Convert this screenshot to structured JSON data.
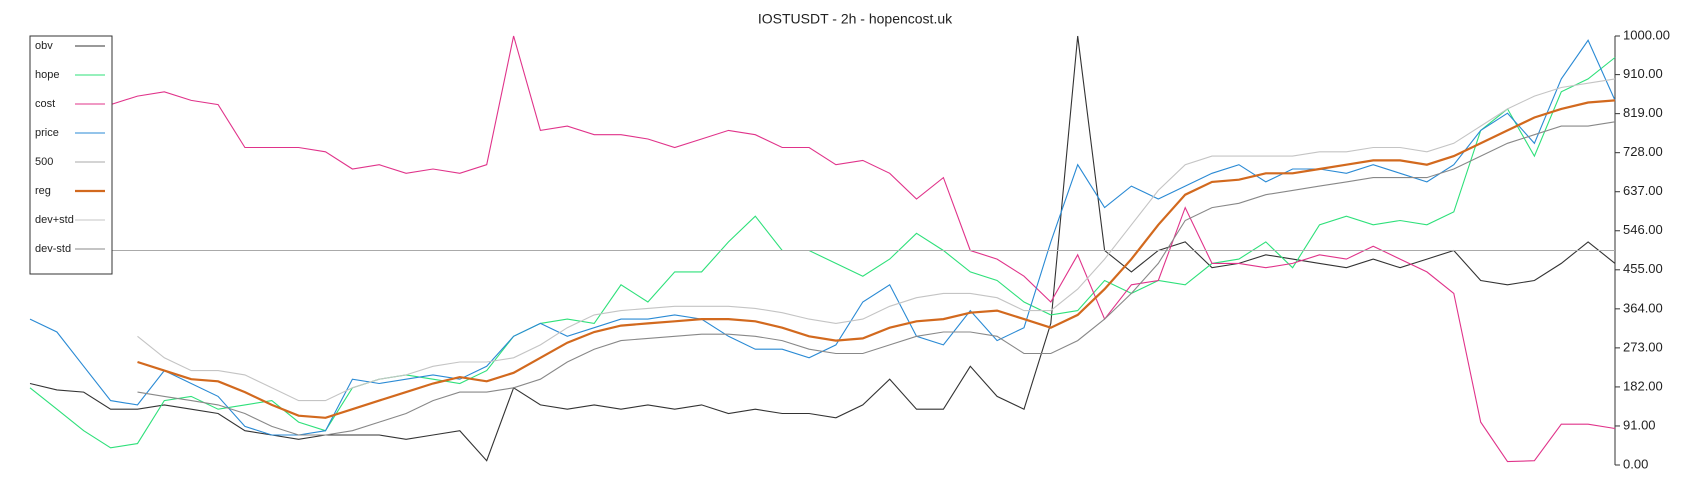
{
  "chart_data": {
    "type": "line",
    "title": "IOSTUSDT - 2h - hopencost.uk",
    "categories": [
      null,
      null,
      null,
      null,
      null,
      null,
      null,
      null,
      null,
      null,
      null,
      null,
      null,
      null,
      null,
      null,
      null,
      null,
      null,
      null,
      null,
      null,
      null,
      null,
      null,
      null,
      null,
      null,
      null,
      null,
      null,
      null,
      null,
      null,
      null,
      null,
      null,
      null,
      null,
      null,
      null,
      null,
      null,
      null,
      null,
      null,
      null,
      null,
      null,
      null,
      null,
      null,
      null,
      null,
      null,
      null,
      null,
      null,
      null,
      null
    ],
    "series": [
      {
        "name": "obv",
        "color": "#333333",
        "values": [
          190,
          175,
          170,
          130,
          130,
          140,
          130,
          120,
          80,
          70,
          60,
          70,
          70,
          70,
          60,
          70,
          80,
          10,
          180,
          140,
          130,
          140,
          130,
          140,
          130,
          140,
          120,
          130,
          120,
          120,
          110,
          140,
          200,
          130,
          130,
          230,
          160,
          130,
          330,
          1000,
          500,
          450,
          500,
          520,
          460,
          470,
          490,
          480,
          470,
          460,
          480,
          460,
          480,
          500,
          430,
          420,
          430,
          470,
          520,
          470
        ]
      },
      {
        "name": "hope",
        "color": "#2ee07a",
        "values": [
          180,
          130,
          80,
          40,
          50,
          150,
          160,
          130,
          140,
          150,
          100,
          80,
          180,
          200,
          210,
          200,
          190,
          220,
          300,
          330,
          340,
          330,
          420,
          380,
          450,
          450,
          520,
          580,
          500,
          500,
          470,
          440,
          480,
          540,
          500,
          450,
          430,
          380,
          350,
          360,
          430,
          400,
          430,
          420,
          470,
          480,
          520,
          460,
          560,
          580,
          560,
          570,
          560,
          590,
          780,
          830,
          720,
          870,
          900,
          950
        ]
      },
      {
        "name": "cost",
        "color": "#e0338a",
        "values": [
          null,
          null,
          null,
          840,
          860,
          870,
          850,
          840,
          740,
          740,
          740,
          730,
          690,
          700,
          680,
          690,
          680,
          700,
          1000,
          780,
          790,
          770,
          770,
          760,
          740,
          760,
          780,
          770,
          740,
          740,
          700,
          710,
          680,
          620,
          670,
          500,
          480,
          440,
          380,
          490,
          340,
          420,
          430,
          600,
          470,
          470,
          460,
          470,
          490,
          480,
          510,
          480,
          450,
          400,
          100,
          8,
          10,
          95,
          95,
          85
        ]
      },
      {
        "name": "price",
        "color": "#2a8ad4",
        "values": [
          340,
          310,
          230,
          150,
          140,
          220,
          190,
          160,
          90,
          70,
          70,
          80,
          200,
          190,
          200,
          210,
          200,
          230,
          300,
          330,
          300,
          320,
          340,
          340,
          350,
          340,
          300,
          270,
          270,
          250,
          280,
          380,
          420,
          300,
          280,
          360,
          290,
          320,
          520,
          700,
          600,
          650,
          620,
          650,
          680,
          700,
          660,
          690,
          690,
          680,
          700,
          680,
          660,
          700,
          780,
          820,
          750,
          900,
          990,
          850
        ]
      },
      {
        "name": "500",
        "color": "#aaaaaa",
        "values": [
          500,
          500,
          500,
          500,
          500,
          500,
          500,
          500,
          500,
          500,
          500,
          500,
          500,
          500,
          500,
          500,
          500,
          500,
          500,
          500,
          500,
          500,
          500,
          500,
          500,
          500,
          500,
          500,
          500,
          500,
          500,
          500,
          500,
          500,
          500,
          500,
          500,
          500,
          500,
          500,
          500,
          500,
          500,
          500,
          500,
          500,
          500,
          500,
          500,
          500,
          500,
          500,
          500,
          500,
          500,
          500,
          500,
          500,
          500,
          500
        ]
      },
      {
        "name": "reg",
        "color": "#d2691e",
        "values": [
          null,
          null,
          null,
          null,
          240,
          220,
          200,
          195,
          170,
          140,
          115,
          110,
          130,
          150,
          170,
          190,
          205,
          195,
          215,
          250,
          285,
          310,
          325,
          330,
          335,
          340,
          340,
          335,
          320,
          300,
          290,
          295,
          320,
          335,
          340,
          355,
          360,
          340,
          320,
          350,
          410,
          480,
          560,
          630,
          660,
          665,
          680,
          680,
          690,
          700,
          710,
          710,
          700,
          720,
          750,
          780,
          810,
          830,
          845,
          850
        ]
      },
      {
        "name": "dev+std",
        "color": "#c4c4c4",
        "values": [
          null,
          null,
          null,
          null,
          300,
          250,
          220,
          220,
          210,
          180,
          150,
          150,
          180,
          200,
          210,
          230,
          240,
          240,
          250,
          280,
          320,
          350,
          360,
          365,
          370,
          370,
          370,
          365,
          355,
          340,
          330,
          340,
          370,
          390,
          400,
          400,
          390,
          360,
          360,
          410,
          480,
          560,
          640,
          700,
          720,
          720,
          720,
          720,
          730,
          730,
          740,
          740,
          730,
          750,
          790,
          830,
          860,
          880,
          890,
          900
        ]
      },
      {
        "name": "dev-std",
        "color": "#888888",
        "values": [
          null,
          null,
          null,
          null,
          170,
          160,
          150,
          140,
          120,
          90,
          70,
          70,
          80,
          100,
          120,
          150,
          170,
          170,
          180,
          200,
          240,
          270,
          290,
          295,
          300,
          305,
          305,
          300,
          290,
          270,
          260,
          260,
          280,
          300,
          310,
          310,
          300,
          260,
          260,
          290,
          340,
          400,
          470,
          570,
          600,
          610,
          630,
          640,
          650,
          660,
          670,
          670,
          670,
          690,
          720,
          750,
          770,
          790,
          790,
          800
        ]
      }
    ],
    "ylim": [
      0,
      1000
    ],
    "yticks": [
      {
        "value": 0,
        "label": "0.00"
      },
      {
        "value": 91,
        "label": "91.00"
      },
      {
        "value": 182,
        "label": "182.00"
      },
      {
        "value": 273,
        "label": "273.00"
      },
      {
        "value": 364,
        "label": "364.00"
      },
      {
        "value": 455,
        "label": "455.00"
      },
      {
        "value": 546,
        "label": "546.00"
      },
      {
        "value": 637,
        "label": "637.00"
      },
      {
        "value": 728,
        "label": "728.00"
      },
      {
        "value": 819,
        "label": "819.00"
      },
      {
        "value": 910,
        "label": "910.00"
      },
      {
        "value": 1000,
        "label": "1000.00"
      }
    ],
    "legend": "upper left",
    "grid": false
  }
}
